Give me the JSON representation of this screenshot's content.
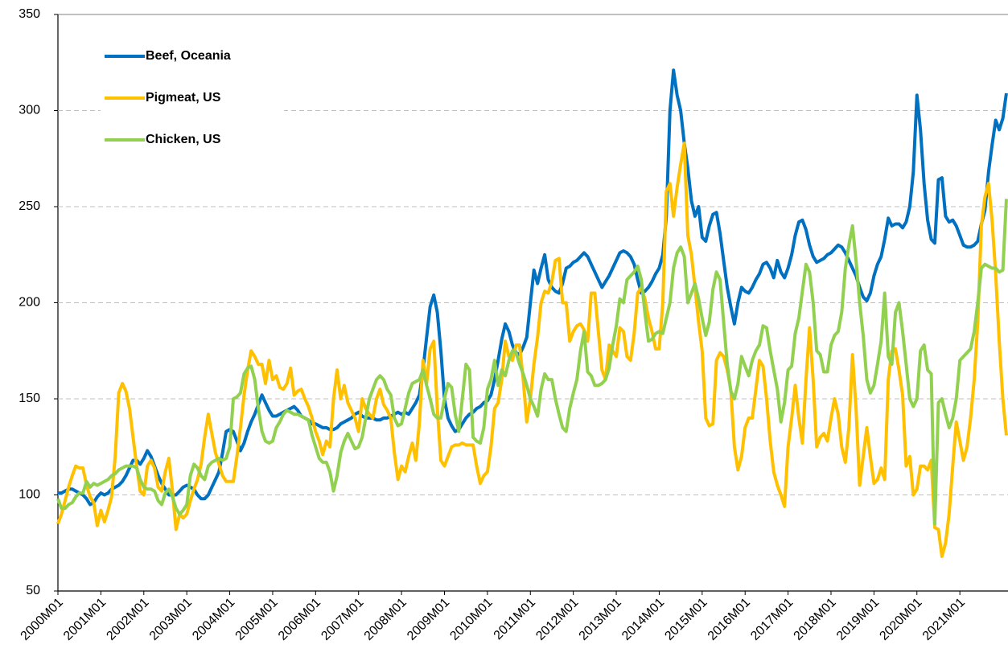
{
  "chart_data": {
    "type": "line",
    "categories": [
      "2000M01",
      null,
      null,
      null,
      null,
      null,
      null,
      null,
      null,
      null,
      null,
      null,
      "2001M01",
      null,
      null,
      null,
      null,
      null,
      null,
      null,
      null,
      null,
      null,
      null,
      "2002M01",
      null,
      null,
      null,
      null,
      null,
      null,
      null,
      null,
      null,
      null,
      null,
      "2003M01",
      null,
      null,
      null,
      null,
      null,
      null,
      null,
      null,
      null,
      null,
      null,
      "2004M01",
      null,
      null,
      null,
      null,
      null,
      null,
      null,
      null,
      null,
      null,
      null,
      "2005M01",
      null,
      null,
      null,
      null,
      null,
      null,
      null,
      null,
      null,
      null,
      null,
      "2006M01",
      null,
      null,
      null,
      null,
      null,
      null,
      null,
      null,
      null,
      null,
      null,
      "2007M01",
      null,
      null,
      null,
      null,
      null,
      null,
      null,
      null,
      null,
      null,
      null,
      "2008M01",
      null,
      null,
      null,
      null,
      null,
      null,
      null,
      null,
      null,
      null,
      null,
      "2009M01",
      null,
      null,
      null,
      null,
      null,
      null,
      null,
      null,
      null,
      null,
      null,
      "2010M01",
      null,
      null,
      null,
      null,
      null,
      null,
      null,
      null,
      null,
      null,
      null,
      "2011M01",
      null,
      null,
      null,
      null,
      null,
      null,
      null,
      null,
      null,
      null,
      null,
      "2012M01",
      null,
      null,
      null,
      null,
      null,
      null,
      null,
      null,
      null,
      null,
      null,
      "2013M01",
      null,
      null,
      null,
      null,
      null,
      null,
      null,
      null,
      null,
      null,
      null,
      "2014M01",
      null,
      null,
      null,
      null,
      null,
      null,
      null,
      null,
      null,
      null,
      null,
      "2015M01",
      null,
      null,
      null,
      null,
      null,
      null,
      null,
      null,
      null,
      null,
      null,
      "2016M01",
      null,
      null,
      null,
      null,
      null,
      null,
      null,
      null,
      null,
      null,
      null,
      "2017M01",
      null,
      null,
      null,
      null,
      null,
      null,
      null,
      null,
      null,
      null,
      null,
      "2018M01",
      null,
      null,
      null,
      null,
      null,
      null,
      null,
      null,
      null,
      null,
      null,
      "2019M01",
      null,
      null,
      null,
      null,
      null,
      null,
      null,
      null,
      null,
      null,
      null,
      "2020M01",
      null,
      null,
      null,
      null,
      null,
      null,
      null,
      null,
      null,
      null,
      null,
      "2021M01",
      null,
      null,
      null,
      null,
      null,
      null,
      null,
      null,
      null,
      null,
      null,
      null,
      null
    ],
    "series": [
      {
        "name": "Beef, Oceania",
        "color": "#0070c0",
        "values": [
          101,
          101,
          102,
          103,
          103,
          102,
          101,
          100,
          98,
          95,
          96,
          99,
          101,
          100,
          101,
          103,
          104,
          105,
          107,
          110,
          114,
          118,
          118,
          116,
          119,
          123,
          120,
          115,
          110,
          106,
          103,
          100,
          100,
          100,
          102,
          104,
          105,
          104,
          103,
          100,
          98,
          98,
          100,
          104,
          108,
          112,
          122,
          133,
          134,
          133,
          128,
          123,
          127,
          133,
          138,
          142,
          147,
          152,
          148,
          144,
          141,
          141,
          142,
          143,
          144,
          145,
          146,
          144,
          141,
          140,
          139,
          137,
          137,
          136,
          135,
          135,
          134,
          134,
          135,
          137,
          138,
          139,
          140,
          142,
          143,
          141,
          140,
          140,
          140,
          139,
          139,
          140,
          140,
          141,
          142,
          143,
          142,
          143,
          142,
          145,
          148,
          152,
          165,
          182,
          198,
          204,
          195,
          175,
          150,
          140,
          136,
          133,
          134,
          137,
          140,
          142,
          143,
          145,
          146,
          148,
          149,
          152,
          160,
          170,
          181,
          189,
          185,
          178,
          174,
          173,
          177,
          182,
          200,
          217,
          210,
          218,
          225,
          212,
          208,
          206,
          205,
          210,
          218,
          219,
          221,
          222,
          224,
          226,
          224,
          220,
          216,
          212,
          208,
          211,
          214,
          218,
          222,
          226,
          227,
          226,
          224,
          220,
          212,
          205,
          206,
          208,
          211,
          215,
          218,
          225,
          245,
          300,
          321,
          308,
          300,
          283,
          270,
          253,
          245,
          250,
          234,
          232,
          240,
          246,
          247,
          236,
          222,
          208,
          198,
          189,
          200,
          208,
          206,
          205,
          208,
          212,
          215,
          220,
          221,
          218,
          213,
          222,
          216,
          213,
          218,
          225,
          235,
          242,
          243,
          238,
          230,
          224,
          221,
          222,
          223,
          225,
          226,
          228,
          230,
          229,
          226,
          222,
          218,
          214,
          208,
          203,
          201,
          205,
          214,
          220,
          224,
          233,
          244,
          240,
          241,
          241,
          239,
          242,
          250,
          268,
          308,
          290,
          262,
          243,
          233,
          231,
          264,
          265,
          245,
          242,
          243,
          240,
          235,
          230,
          229,
          229,
          230,
          232,
          241,
          248,
          268,
          282,
          295,
          290,
          296,
          309
        ]
      },
      {
        "name": "Pigmeat, US",
        "color": "#ffc000",
        "values": [
          85,
          90,
          97,
          104,
          110,
          115,
          114,
          114,
          105,
          99,
          96,
          84,
          92,
          86,
          92,
          99,
          120,
          153,
          158,
          154,
          145,
          130,
          115,
          102,
          100,
          115,
          118,
          114,
          104,
          102,
          112,
          119,
          102,
          82,
          90,
          88,
          90,
          97,
          103,
          108,
          116,
          130,
          142,
          132,
          122,
          116,
          110,
          107,
          107,
          107,
          120,
          135,
          152,
          165,
          175,
          172,
          168,
          168,
          158,
          170,
          160,
          162,
          156,
          155,
          158,
          166,
          152,
          154,
          155,
          150,
          146,
          140,
          133,
          128,
          121,
          128,
          125,
          150,
          165,
          150,
          157,
          148,
          144,
          140,
          133,
          150,
          145,
          142,
          140,
          150,
          155,
          147,
          144,
          140,
          122,
          108,
          115,
          112,
          120,
          127,
          118,
          138,
          170,
          158,
          176,
          180,
          145,
          118,
          115,
          120,
          125,
          126,
          126,
          127,
          126,
          126,
          126,
          115,
          106,
          110,
          112,
          125,
          145,
          148,
          160,
          180,
          172,
          170,
          178,
          178,
          160,
          138,
          150,
          168,
          182,
          200,
          206,
          205,
          211,
          222,
          223,
          200,
          200,
          180,
          185,
          188,
          189,
          186,
          180,
          205,
          205,
          185,
          165,
          160,
          178,
          175,
          172,
          187,
          185,
          172,
          170,
          184,
          205,
          208,
          202,
          192,
          185,
          176,
          176,
          200,
          258,
          262,
          245,
          260,
          272,
          283,
          235,
          225,
          208,
          190,
          175,
          140,
          136,
          137,
          170,
          174,
          172,
          165,
          155,
          125,
          113,
          120,
          135,
          140,
          140,
          155,
          170,
          167,
          150,
          128,
          112,
          105,
          100,
          94,
          125,
          140,
          157,
          140,
          127,
          160,
          187,
          160,
          125,
          130,
          132,
          128,
          140,
          150,
          142,
          125,
          117,
          135,
          173,
          145,
          105,
          120,
          135,
          120,
          106,
          108,
          114,
          108,
          160,
          175,
          176,
          165,
          152,
          115,
          120,
          100,
          103,
          115,
          115,
          113,
          118,
          83,
          82,
          68,
          75,
          90,
          115,
          138,
          128,
          118,
          125,
          140,
          160,
          190,
          240,
          255,
          262,
          243,
          215,
          180,
          150,
          131
        ]
      },
      {
        "name": "Chicken, US",
        "color": "#92d050",
        "values": [
          98,
          93,
          93,
          95,
          96,
          99,
          101,
          101,
          107,
          104,
          106,
          105,
          106,
          107,
          108,
          110,
          111,
          113,
          114,
          115,
          115,
          115,
          114,
          108,
          104,
          103,
          103,
          102,
          97,
          95,
          101,
          103,
          99,
          93,
          90,
          92,
          95,
          110,
          116,
          114,
          110,
          108,
          115,
          117,
          118,
          119,
          118,
          119,
          125,
          150,
          151,
          153,
          163,
          166,
          167,
          160,
          145,
          133,
          128,
          127,
          128,
          135,
          138,
          142,
          144,
          143,
          142,
          142,
          141,
          140,
          139,
          131,
          125,
          119,
          117,
          117,
          112,
          102,
          110,
          122,
          128,
          132,
          128,
          124,
          125,
          130,
          140,
          150,
          155,
          160,
          162,
          160,
          155,
          152,
          140,
          136,
          137,
          145,
          153,
          158,
          159,
          160,
          165,
          157,
          150,
          142,
          140,
          140,
          150,
          158,
          156,
          142,
          133,
          150,
          168,
          165,
          130,
          128,
          127,
          135,
          155,
          160,
          170,
          157,
          165,
          162,
          170,
          175,
          174,
          168,
          163,
          157,
          150,
          146,
          141,
          155,
          163,
          160,
          160,
          150,
          142,
          135,
          133,
          145,
          153,
          160,
          175,
          185,
          164,
          162,
          157,
          157,
          158,
          160,
          166,
          178,
          188,
          202,
          200,
          212,
          214,
          216,
          219,
          212,
          195,
          180,
          181,
          184,
          185,
          184,
          192,
          200,
          218,
          226,
          229,
          224,
          200,
          205,
          210,
          202,
          192,
          183,
          190,
          207,
          216,
          212,
          190,
          168,
          154,
          150,
          158,
          172,
          167,
          162,
          170,
          175,
          178,
          188,
          187,
          175,
          165,
          155,
          138,
          148,
          165,
          167,
          184,
          192,
          206,
          220,
          216,
          200,
          175,
          173,
          164,
          164,
          178,
          183,
          185,
          195,
          218,
          230,
          240,
          222,
          200,
          183,
          160,
          153,
          157,
          168,
          180,
          205,
          172,
          168,
          195,
          200,
          185,
          168,
          150,
          146,
          150,
          175,
          178,
          165,
          163,
          85,
          148,
          150,
          142,
          135,
          140,
          150,
          170,
          172,
          174,
          176,
          185,
          200,
          218,
          220,
          219,
          218,
          218,
          216,
          217,
          254
        ]
      }
    ],
    "ylim": [
      50,
      350
    ],
    "yticks": [
      50,
      100,
      150,
      200,
      250,
      300,
      350
    ],
    "grid": true,
    "legend_position": "upper left"
  }
}
